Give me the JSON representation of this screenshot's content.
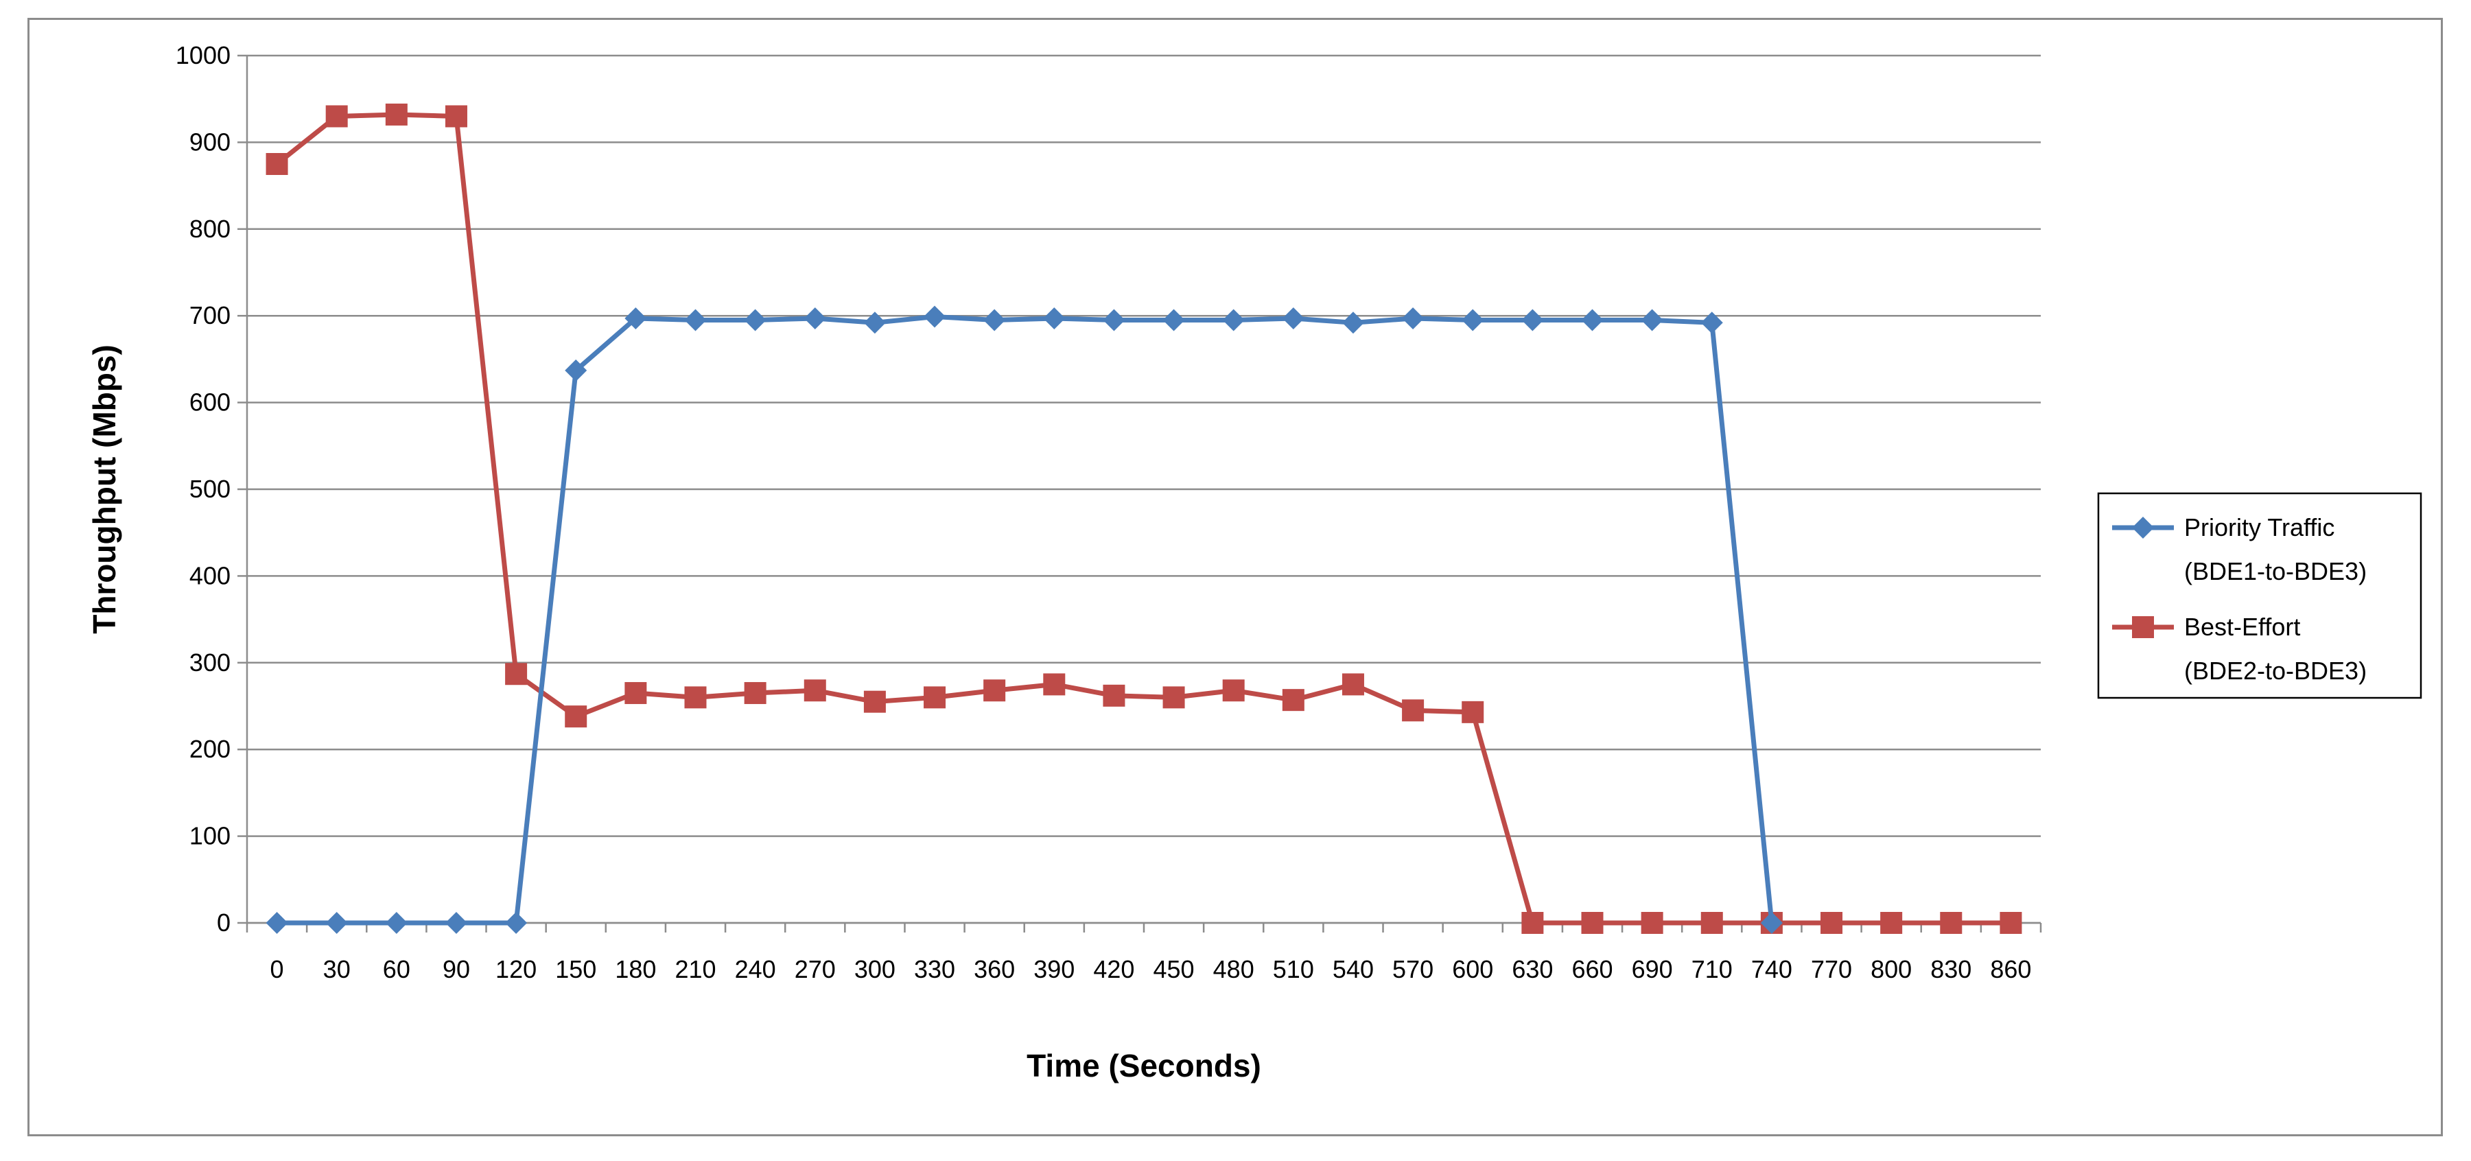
{
  "chart_data": {
    "type": "line",
    "title": "",
    "xlabel": "Time (Seconds)",
    "ylabel": "Throughput (Mbps)",
    "ylim": [
      0,
      1000
    ],
    "yticks": [
      0,
      100,
      200,
      300,
      400,
      500,
      600,
      700,
      800,
      900,
      1000
    ],
    "grid": true,
    "legend_position": "right",
    "categories": [
      "0",
      "30",
      "60",
      "90",
      "120",
      "150",
      "180",
      "210",
      "240",
      "270",
      "300",
      "330",
      "360",
      "390",
      "420",
      "450",
      "480",
      "510",
      "540",
      "570",
      "600",
      "630",
      "660",
      "690",
      "710",
      "740",
      "770",
      "800",
      "830",
      "860"
    ],
    "series": [
      {
        "name": "Priority Traffic (BDE1-to-BDE3)",
        "legend_lines": [
          "Priority Traffic",
          "(BDE1-to-BDE3)"
        ],
        "color": "#4a7ebb",
        "marker": "diamond",
        "values": [
          0,
          0,
          0,
          0,
          0,
          637,
          697,
          695,
          695,
          697,
          692,
          699,
          695,
          697,
          695,
          695,
          695,
          697,
          692,
          697,
          695,
          695,
          695,
          695,
          692,
          0,
          null,
          null,
          null,
          null
        ]
      },
      {
        "name": "Best-Effort (BDE2-to-BDE3)",
        "legend_lines": [
          "Best-Effort",
          "(BDE2-to-BDE3)"
        ],
        "color": "#be4b48",
        "marker": "square",
        "values": [
          875,
          930,
          932,
          930,
          287,
          238,
          265,
          260,
          265,
          268,
          255,
          260,
          268,
          275,
          262,
          260,
          268,
          257,
          275,
          245,
          243,
          0,
          0,
          0,
          0,
          0,
          0,
          0,
          0,
          0
        ]
      }
    ]
  }
}
